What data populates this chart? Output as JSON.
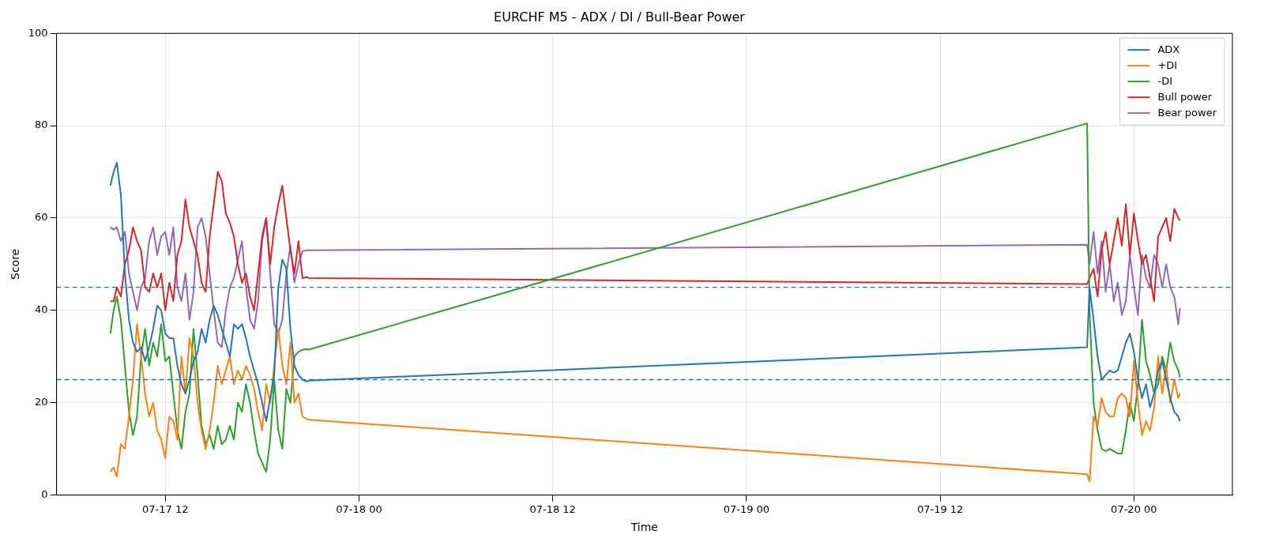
{
  "chart_data": {
    "type": "line",
    "title": "EURCHF M5 - ADX / DI / Bull-Bear Power",
    "xlabel": "Time",
    "ylabel": "Score",
    "x": [
      "--07-17T08:36",
      "--07-17T08:48",
      "--07-17T09:00",
      "--07-17T09:15",
      "--07-17T09:30",
      "--07-17T09:45",
      "--07-17T10:00",
      "--07-17T10:15",
      "--07-17T10:30",
      "--07-17T10:45",
      "--07-17T11:00",
      "--07-17T11:15",
      "--07-17T11:30",
      "--07-17T11:45",
      "--07-17T12:00",
      "--07-17T12:15",
      "--07-17T12:30",
      "--07-17T12:45",
      "--07-17T13:00",
      "--07-17T13:15",
      "--07-17T13:30",
      "--07-17T13:45",
      "--07-17T14:00",
      "--07-17T14:15",
      "--07-17T14:30",
      "--07-17T14:45",
      "--07-17T15:00",
      "--07-17T15:15",
      "--07-17T15:30",
      "--07-17T15:45",
      "--07-17T16:00",
      "--07-17T16:15",
      "--07-17T16:30",
      "--07-17T16:45",
      "--07-17T17:00",
      "--07-17T17:15",
      "--07-17T17:30",
      "--07-17T17:45",
      "--07-17T18:00",
      "--07-17T18:15",
      "--07-17T18:30",
      "--07-17T18:45",
      "--07-17T19:00",
      "--07-17T19:15",
      "--07-17T19:30",
      "--07-17T19:45",
      "--07-17T20:00",
      "--07-17T20:15",
      "--07-17T20:30",
      "--07-17T20:45",
      "--07-17T20:54",
      "--07-19T21:06",
      "--07-19T21:15",
      "--07-19T21:30",
      "--07-19T21:45",
      "--07-19T22:00",
      "--07-19T22:15",
      "--07-19T22:30",
      "--07-19T22:45",
      "--07-19T23:00",
      "--07-19T23:15",
      "--07-19T23:30",
      "--07-19T23:45",
      "--07-20T00:00",
      "--07-20T00:15",
      "--07-20T00:30",
      "--07-20T00:45",
      "--07-20T01:00",
      "--07-20T01:15",
      "--07-20T01:30",
      "--07-20T01:45",
      "--07-20T02:00",
      "--07-20T02:15",
      "--07-20T02:30",
      "--07-20T02:45",
      "--07-20T02:51"
    ],
    "series": [
      {
        "name": "ADX",
        "color": "#1f77b4",
        "values": [
          67,
          70,
          72,
          65,
          48,
          38,
          33,
          31,
          32,
          29,
          32,
          36,
          41,
          40,
          35,
          34,
          34,
          28,
          24,
          22,
          25,
          29,
          31,
          36,
          33,
          38,
          41,
          39,
          36,
          33,
          30,
          37,
          36,
          37,
          34,
          30,
          27,
          24,
          20,
          16,
          21,
          26,
          45,
          51,
          49,
          36,
          28,
          26,
          25,
          24.6,
          24.8,
          32,
          45,
          38,
          30,
          25,
          26,
          27,
          26.5,
          27,
          30,
          33,
          35,
          31,
          25,
          21,
          24,
          19,
          22,
          27,
          29,
          25,
          21,
          18,
          17,
          16
        ]
      },
      {
        "name": "+DI",
        "color": "#ff7f0e",
        "values": [
          5,
          6,
          4,
          11,
          10,
          17,
          25,
          37,
          30,
          22,
          17,
          20,
          14,
          12,
          8,
          17,
          16,
          12,
          30,
          22,
          34,
          30,
          20,
          14,
          10,
          14,
          20,
          28,
          24,
          27,
          30,
          24,
          27,
          25,
          28,
          26,
          23,
          18,
          14,
          24,
          20,
          28,
          36,
          28,
          24,
          33,
          20,
          22,
          17,
          16.5,
          16.3,
          4.5,
          3,
          17,
          15,
          21,
          18,
          17,
          17,
          21,
          22,
          21,
          17,
          29,
          20,
          13,
          16,
          14,
          19,
          30,
          22,
          28,
          20,
          25,
          21,
          22
        ]
      },
      {
        "name": "-DI",
        "color": "#2ca02c",
        "values": [
          35,
          40,
          43,
          38,
          28,
          18,
          13,
          17,
          30,
          36,
          28,
          33,
          30,
          37,
          29,
          30,
          22,
          14,
          10,
          18,
          22,
          36,
          26,
          15,
          11,
          13,
          10,
          15,
          11,
          12,
          15,
          12,
          20,
          18,
          24,
          20,
          14,
          9,
          7,
          5,
          12,
          25,
          14,
          10,
          23,
          20,
          30,
          31,
          31.5,
          31.6,
          31.5,
          80.5,
          40,
          20,
          14,
          10,
          9.5,
          10,
          9.5,
          9,
          9,
          14,
          20,
          16,
          24,
          38,
          29,
          26,
          22,
          24,
          30,
          27,
          33,
          29,
          27,
          25.5
        ]
      },
      {
        "name": "Bull power",
        "color": "#d62728",
        "values": [
          42,
          42,
          45,
          43,
          50,
          53,
          58,
          55,
          53,
          45,
          44,
          48,
          45,
          48,
          40,
          46,
          42,
          52,
          55,
          64,
          58,
          55,
          52,
          46,
          44,
          56,
          63,
          70,
          68,
          61,
          59,
          56,
          50,
          46,
          48,
          43,
          40,
          48,
          56,
          60,
          50,
          58,
          63,
          67,
          60,
          53,
          48,
          55,
          47,
          47.2,
          47,
          45.7,
          47,
          49,
          43,
          53,
          57,
          50,
          55,
          60,
          54,
          63,
          52,
          61,
          55,
          50,
          52,
          47,
          42,
          56,
          58,
          60,
          55,
          62,
          60,
          59.5
        ]
      },
      {
        "name": "Bear power",
        "color": "#9467bd",
        "values": [
          58,
          57.5,
          58,
          55,
          57,
          48,
          44,
          40,
          45,
          47,
          55,
          58,
          52,
          56,
          57,
          52,
          58,
          45,
          42,
          48,
          38,
          44,
          58,
          60,
          56,
          48,
          40,
          33,
          32,
          40,
          45,
          47,
          51,
          55,
          45,
          38,
          36,
          42,
          55,
          60,
          48,
          37,
          35,
          38,
          48,
          54,
          46,
          50,
          52.8,
          53,
          53,
          54.2,
          50,
          57,
          48,
          55,
          44,
          50,
          42,
          46,
          39,
          42,
          52,
          45,
          39,
          52,
          47,
          45,
          52,
          50,
          45,
          50,
          45,
          43,
          37,
          40.5
        ]
      }
    ],
    "xlim": [
      "--07-17T05:16",
      "--07-20T06:06"
    ],
    "xticks": [
      {
        "value": "--07-17T12:00",
        "label": "07-17 12"
      },
      {
        "value": "--07-18T00:00",
        "label": "07-18 00"
      },
      {
        "value": "--07-18T12:00",
        "label": "07-18 12"
      },
      {
        "value": "--07-19T00:00",
        "label": "07-19 00"
      },
      {
        "value": "--07-19T12:00",
        "label": "07-19 12"
      },
      {
        "value": "--07-20T00:00",
        "label": "07-20 00"
      }
    ],
    "ylim": [
      0,
      100
    ],
    "yticks": [
      0,
      20,
      40,
      60,
      80,
      100
    ],
    "ref_lines": [
      {
        "axis": "y",
        "value": 45,
        "color": "#1f77b4",
        "line_style": "dashed"
      },
      {
        "axis": "y",
        "value": 25,
        "color": "#1f77b4",
        "line_style": "dashed"
      }
    ],
    "grid": true,
    "legend": "top right",
    "marker": "none",
    "line_style": "solid"
  }
}
